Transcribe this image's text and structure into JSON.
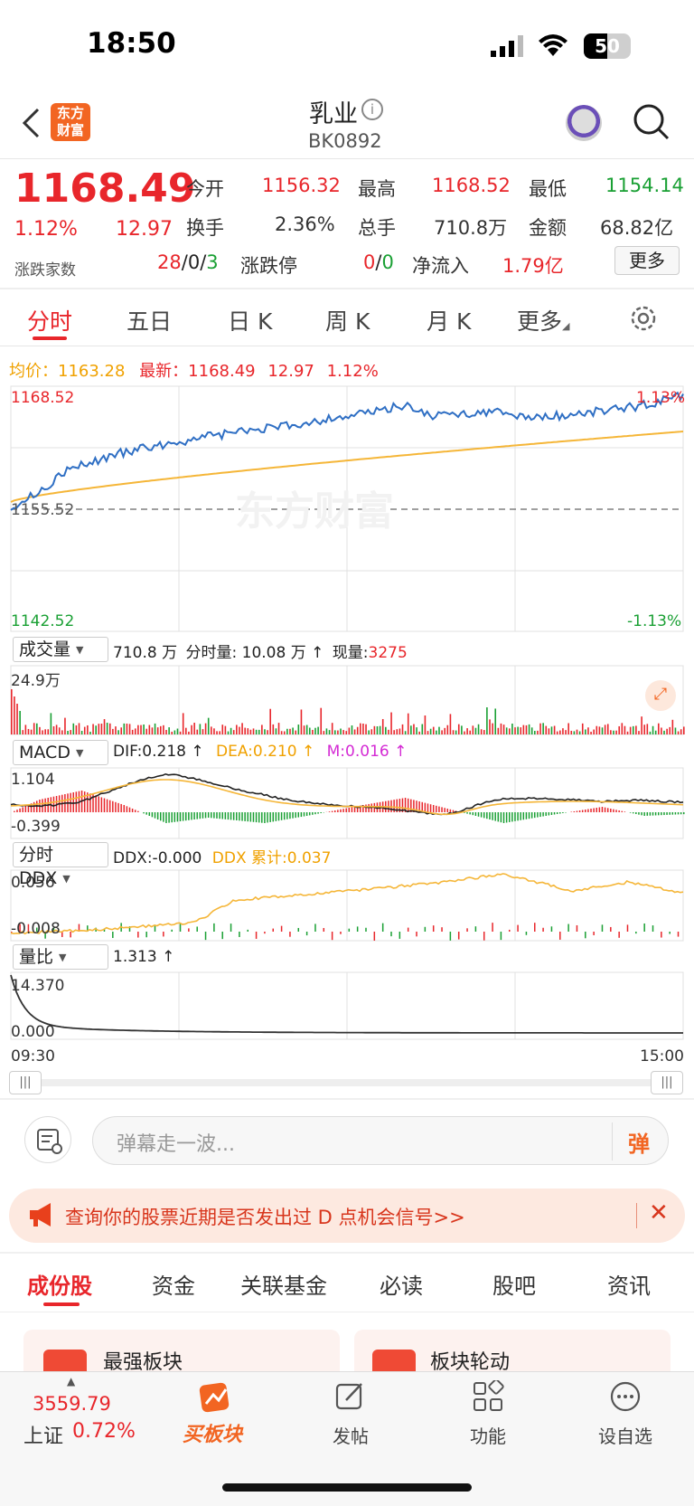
{
  "status_bar": {
    "time": "18:50",
    "battery": "50"
  },
  "header": {
    "logo_line1": "东方",
    "logo_line2": "财富",
    "title": "乳业",
    "code": "BK0892"
  },
  "quote": {
    "price": "1168.49",
    "change_pct": "1.12%",
    "change": "12.97",
    "open_label": "今开",
    "open": "1156.32",
    "high_label": "最高",
    "high": "1168.52",
    "low_label": "最低",
    "low": "1154.14",
    "turnover_label": "换手",
    "turnover": "2.36%",
    "volume_label": "总手",
    "volume": "710.8万",
    "amount_label": "金额",
    "amount": "68.82亿",
    "breadth_label": "涨跌家数",
    "breadth_up": "28",
    "breadth_sep1": "/",
    "breadth_flat": "0",
    "breadth_sep2": "/",
    "breadth_down": "3",
    "limit_label": "涨跌停",
    "limit_up": "0",
    "limit_sep": "/",
    "limit_down": "0",
    "netflow_label": "净流入",
    "netflow": "1.79亿",
    "more_button": "更多"
  },
  "chart_tabs": [
    "分时",
    "五日",
    "日 K",
    "周 K",
    "月 K",
    "更多"
  ],
  "colors": {
    "accent": "#e8262b",
    "up": "#e8262b",
    "down": "#1aa034",
    "avg_line": "#f5b638",
    "price_line": "#2f6fc4",
    "brand": "#f26522"
  },
  "price_panel": {
    "avg_label": "均价：",
    "avg": "1163.28",
    "latest_label": "最新：",
    "latest": "1168.49",
    "latest_change": "12.97",
    "latest_pct": "1.12%",
    "y_top": "1168.52",
    "y_mid": "1155.52",
    "y_bottom": "1142.52",
    "pct_top": "1.13%",
    "pct_bottom": "-1.13%",
    "watermark": "东方财富"
  },
  "volume_panel": {
    "selector": "成交量",
    "total": "710.8 万",
    "minute_label": "分时量:",
    "minute_value": "10.08 万 ↑",
    "now_label": "现量:",
    "now_value": "3275",
    "y_top": "24.9万"
  },
  "macd_panel": {
    "selector": "MACD",
    "dif": "DIF:0.218 ↑",
    "dea": "DEA:0.210 ↑",
    "m": "M:0.016 ↑",
    "y_top": "1.104",
    "y_bottom": "-0.399"
  },
  "ddx_panel": {
    "selector": "分时 DDX",
    "ddx": "DDX:-0.000",
    "ddx_sum": "DDX 累计:0.037",
    "y_top": "0.056",
    "y_bottom": "-0.008"
  },
  "ratio_panel": {
    "selector": "量比",
    "value": "1.313 ↑",
    "y_top": "14.370",
    "y_bottom": "0.000"
  },
  "time_axis": {
    "start": "09:30",
    "end": "15:00"
  },
  "comment": {
    "placeholder": "弹幕走一波...",
    "send_label": "弹"
  },
  "banner": {
    "text": "查询你的股票近期是否发出过 D 点机会信号>>"
  },
  "bottom_tabs": [
    "成份股",
    "资金",
    "关联基金",
    "必读",
    "股吧",
    "资讯"
  ],
  "cards": [
    "最强板块",
    "板块轮动"
  ],
  "nav": {
    "index_value": "3559.79",
    "index_name": "上证",
    "index_pct": "0.72%",
    "buy_label": "买板块",
    "post_label": "发帖",
    "func_label": "功能",
    "watch_label": "设自选"
  }
}
